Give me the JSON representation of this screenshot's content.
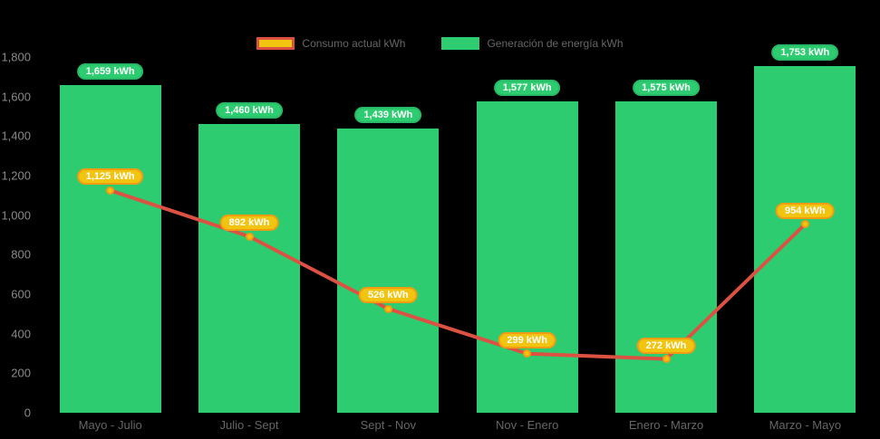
{
  "colors": {
    "background": "#000000",
    "bar": "#2ecc71",
    "bar_badge_bg": "#2ecc71",
    "bar_badge_border": "#28b966",
    "line": "#dc5142",
    "marker_fill": "#f1c40f",
    "marker_border": "#f39c12",
    "point_badge_bg": "#f1c40f",
    "point_badge_border": "#f39c12",
    "badge_text": "#ffffff",
    "y_axis_text": "#8a8a8a",
    "x_axis_text": "#666666",
    "legend_text": "#666666"
  },
  "chart_data": {
    "type": "bar+line",
    "categories": [
      "Mayo - Julio",
      "Julio - Sept",
      "Sept - Nov",
      "Nov - Enero",
      "Enero - Marzo",
      "Marzo - Mayo"
    ],
    "series": [
      {
        "name": "Consumo actual kWh",
        "type": "line",
        "values": [
          1125,
          892,
          526,
          299,
          272,
          954
        ],
        "labels": [
          "1,125 kWh",
          "892 kWh",
          "526 kWh",
          "299 kWh",
          "272 kWh",
          "954 kWh"
        ]
      },
      {
        "name": "Generación de energía kWh",
        "type": "bar",
        "values": [
          1659,
          1460,
          1439,
          1577,
          1575,
          1753
        ],
        "labels": [
          "1,659 kWh",
          "1,460 kWh",
          "1,439 kWh",
          "1,577 kWh",
          "1,575 kWh",
          "1,753 kWh"
        ]
      }
    ],
    "title": "",
    "xlabel": "",
    "ylabel": "",
    "ylim": [
      0,
      1800
    ],
    "y_ticks": [
      0,
      200,
      400,
      600,
      800,
      1000,
      1200,
      1400,
      1600,
      1800
    ],
    "y_tick_labels": [
      "0",
      "200",
      "400",
      "600",
      "800",
      "1,000",
      "1,200",
      "1,400",
      "1,600",
      "1,800"
    ],
    "grid": false,
    "legend_position": "top-center"
  }
}
